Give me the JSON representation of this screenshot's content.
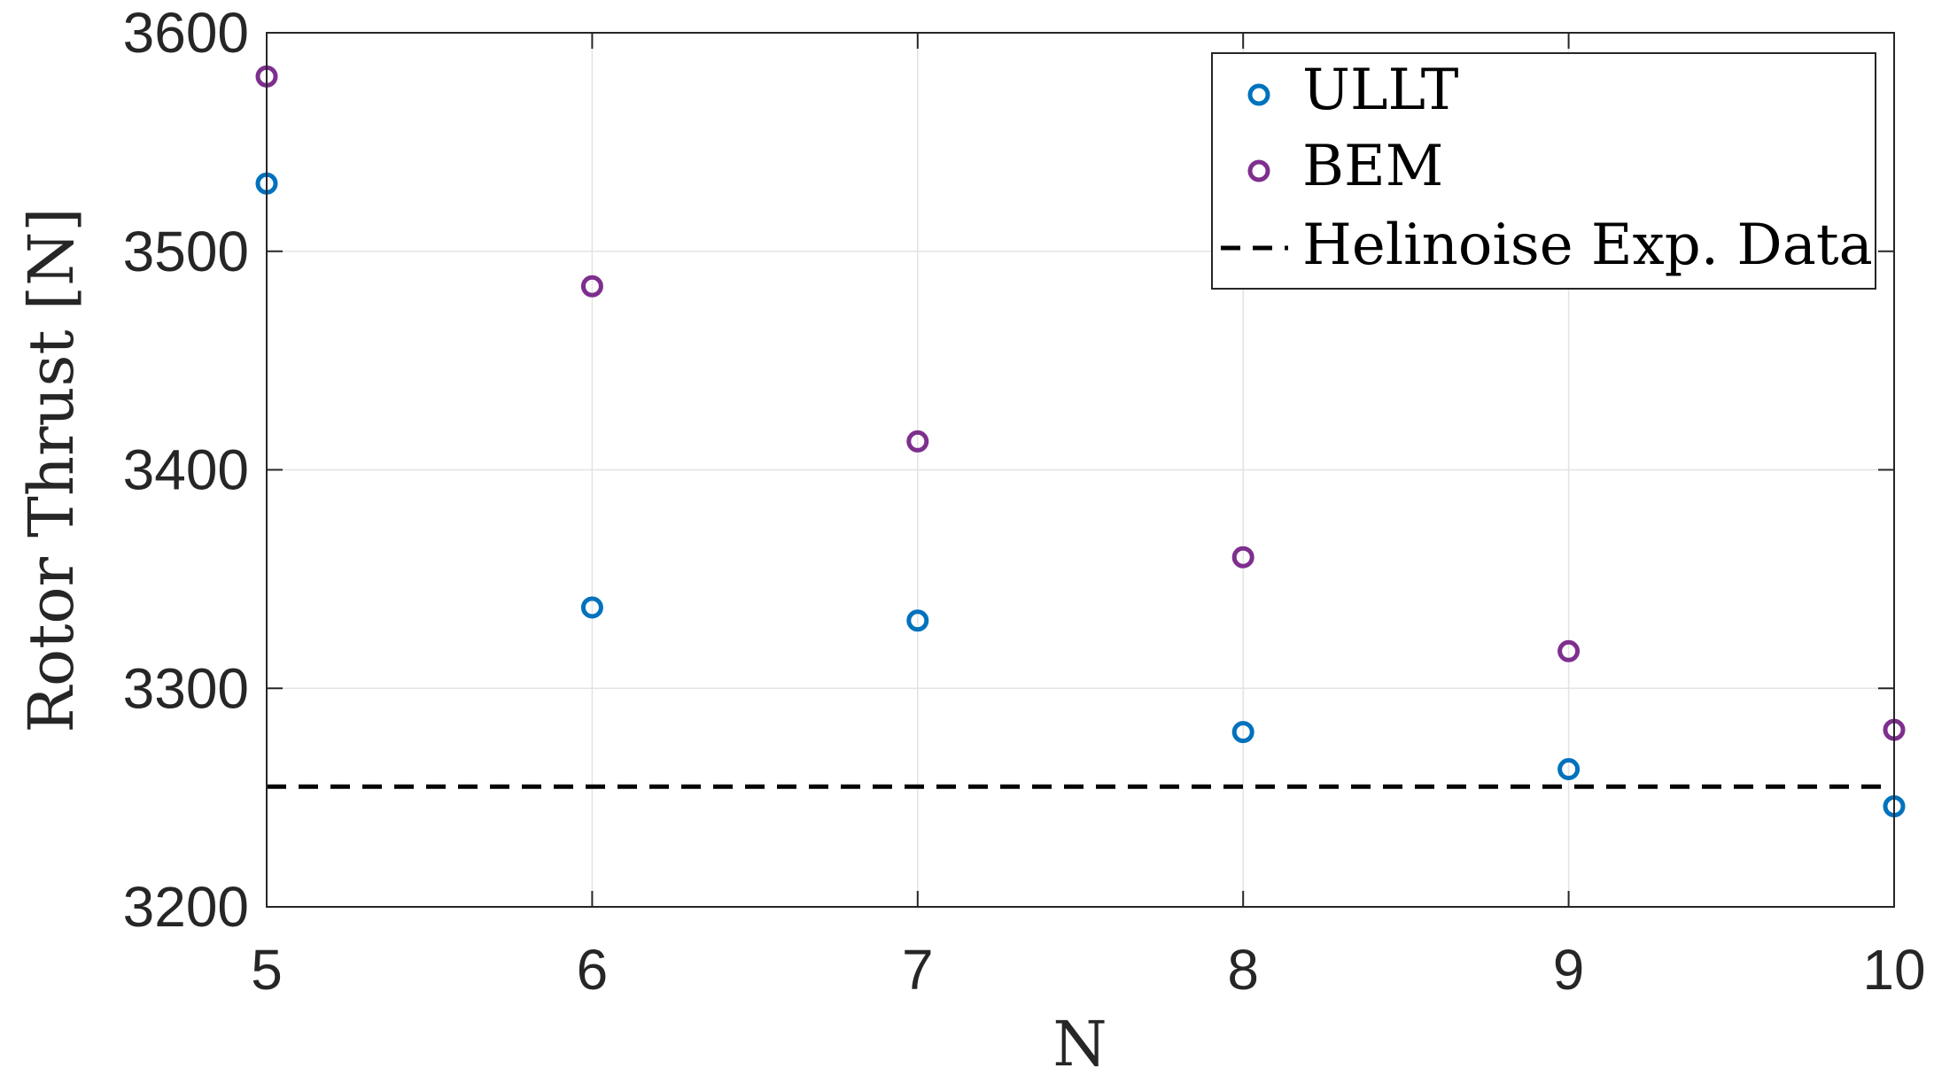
{
  "chart_data": {
    "type": "scatter",
    "xlabel": "N",
    "ylabel": "Rotor Thrust [N]",
    "xlim": [
      5,
      10
    ],
    "ylim": [
      3200,
      3600
    ],
    "x_ticks": [
      "5",
      "6",
      "7",
      "8",
      "9",
      "10"
    ],
    "y_ticks": [
      "3200",
      "3300",
      "3400",
      "3500",
      "3600"
    ],
    "grid": true,
    "legend_position": "top-right",
    "x": [
      5,
      6,
      7,
      8,
      9,
      10
    ],
    "series": [
      {
        "name": "ULLT",
        "marker": "circle",
        "color": "#0072bd",
        "values": [
          3531,
          3337,
          3331,
          3280,
          3263,
          3246
        ]
      },
      {
        "name": "BEM",
        "marker": "circle",
        "color": "#7e2f8e",
        "values": [
          3580,
          3484,
          3413,
          3360,
          3317,
          3281
        ]
      }
    ],
    "reference_line": {
      "name": "Helinoise Exp. Data",
      "style": "dashed",
      "color": "#000000",
      "value": 3255
    }
  }
}
